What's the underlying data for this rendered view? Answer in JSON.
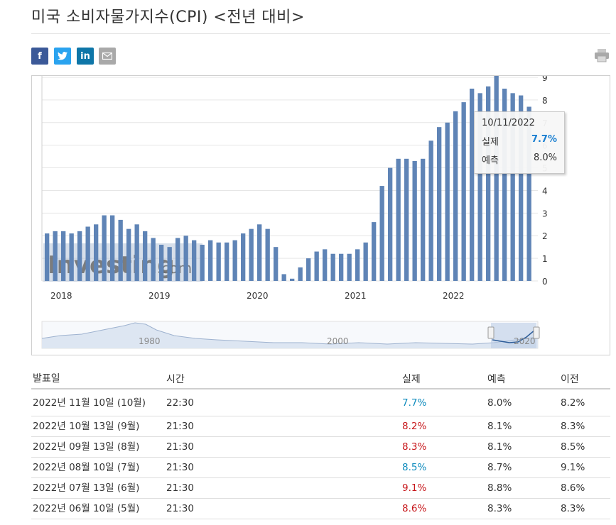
{
  "page": {
    "title": "미국 소비자물가지수(CPI) <전년 대비>"
  },
  "share": {
    "facebook": "f",
    "twitter": "t",
    "linkedin": "in",
    "email_icon": "envelope-icon",
    "print_icon": "printer-icon"
  },
  "chart_data": {
    "type": "bar",
    "title": "",
    "xlabel": "",
    "ylabel": "",
    "ylim": [
      0,
      9
    ],
    "y_ticks": [
      "0",
      "1",
      "2",
      "3",
      "4",
      "5",
      "6",
      "7",
      "8",
      "9"
    ],
    "x_ticks": [
      "2018",
      "2019",
      "2020",
      "2021",
      "2022"
    ],
    "series": [
      {
        "values": [
          2.1,
          2.2,
          2.2,
          2.1,
          2.2,
          2.4,
          2.5,
          2.9,
          2.9,
          2.7,
          2.3,
          2.5,
          2.2,
          1.9,
          1.6,
          1.5,
          1.9,
          2.0,
          1.8,
          1.6,
          1.8,
          1.7,
          1.7,
          1.8,
          2.1,
          2.3,
          2.5,
          2.3,
          1.5,
          0.3,
          0.1,
          0.6,
          1.0,
          1.3,
          1.4,
          1.2,
          1.2,
          1.2,
          1.4,
          1.7,
          2.6,
          4.2,
          5.0,
          5.4,
          5.4,
          5.3,
          5.4,
          6.2,
          6.8,
          7.0,
          7.5,
          7.9,
          8.5,
          8.3,
          8.6,
          9.1,
          8.5,
          8.3,
          8.2,
          7.7
        ]
      }
    ],
    "navigator_ticks": [
      "1980",
      "2000",
      "2020"
    ],
    "grid": true,
    "bar_color": "#5f84b6",
    "watermark": "Investing.com"
  },
  "tooltip": {
    "date": "10/11/2022",
    "actual_label": "실제",
    "actual_value": "7.7%",
    "forecast_label": "예측",
    "forecast_value": "8.0%"
  },
  "table": {
    "headers": {
      "date": "발표일",
      "time": "시간",
      "actual": "실제",
      "forecast": "예측",
      "previous": "이전"
    },
    "rows": [
      {
        "date": "2022년 11월 10일 (10월)",
        "time": "22:30",
        "actual": "7.7%",
        "forecast": "8.0%",
        "previous": "8.2%",
        "trend": "pos"
      },
      {
        "date": "2022년 10월 13일 (9월)",
        "time": "21:30",
        "actual": "8.2%",
        "forecast": "8.1%",
        "previous": "8.3%",
        "trend": "neg"
      },
      {
        "date": "2022년 09월 13일 (8월)",
        "time": "21:30",
        "actual": "8.3%",
        "forecast": "8.1%",
        "previous": "8.5%",
        "trend": "neg"
      },
      {
        "date": "2022년 08월 10일 (7월)",
        "time": "21:30",
        "actual": "8.5%",
        "forecast": "8.7%",
        "previous": "9.1%",
        "trend": "pos"
      },
      {
        "date": "2022년 07월 13일 (6월)",
        "time": "21:30",
        "actual": "9.1%",
        "forecast": "8.8%",
        "previous": "8.6%",
        "trend": "neg"
      },
      {
        "date": "2022년 06월 10일 (5월)",
        "time": "21:30",
        "actual": "8.6%",
        "forecast": "8.3%",
        "previous": "8.3%",
        "trend": "neg"
      }
    ]
  }
}
